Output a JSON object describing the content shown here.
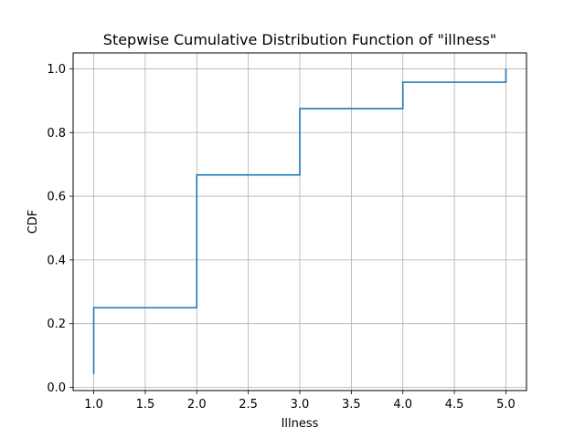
{
  "chart_data": {
    "type": "line",
    "title": "Stepwise Cumulative Distribution Function of \"illness\"",
    "xlabel": "Illness",
    "ylabel": "CDF",
    "xlim": [
      0.8,
      5.2
    ],
    "ylim": [
      -0.01,
      1.05
    ],
    "grid": true,
    "step": "post",
    "x_ticks": [
      "1.0",
      "1.5",
      "2.0",
      "2.5",
      "3.0",
      "3.5",
      "4.0",
      "4.5",
      "5.0"
    ],
    "y_ticks": [
      "0.0",
      "0.2",
      "0.4",
      "0.6",
      "0.8",
      "1.0"
    ],
    "series": [
      {
        "color": "#1f77b4",
        "x": [
          1.0,
          1.0,
          2.0,
          3.0,
          4.0,
          5.0
        ],
        "y": [
          0.042,
          0.25,
          0.667,
          0.875,
          0.958,
          1.0
        ]
      }
    ]
  }
}
